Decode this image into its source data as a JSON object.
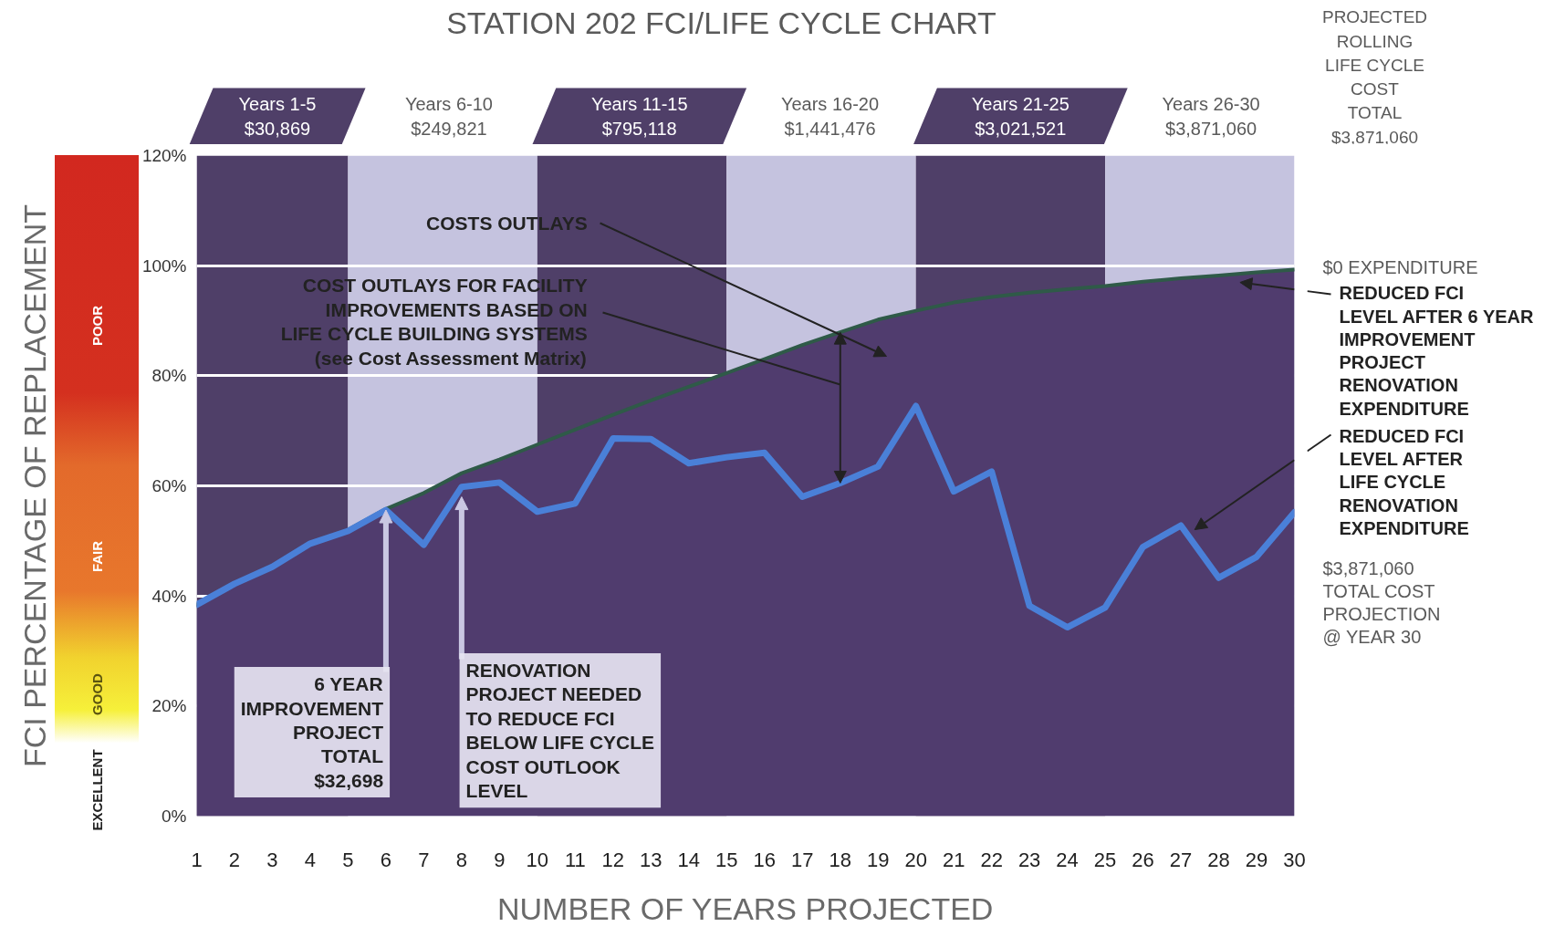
{
  "chart_data": {
    "type": "line",
    "title": "STATION 202 FCI/LIFE CYCLE CHART",
    "xlabel": "NUMBER OF YEARS PROJECTED",
    "ylabel": "FCI PERCENTAGE OF REPLACEMENT",
    "x": [
      1,
      2,
      3,
      4,
      5,
      6,
      7,
      8,
      9,
      10,
      11,
      12,
      13,
      14,
      15,
      16,
      17,
      18,
      19,
      20,
      21,
      22,
      23,
      24,
      25,
      26,
      27,
      28,
      29,
      30
    ],
    "xlim": [
      1,
      30
    ],
    "xticks": [
      1,
      2,
      3,
      4,
      5,
      6,
      7,
      8,
      9,
      10,
      11,
      12,
      13,
      14,
      15,
      16,
      17,
      18,
      19,
      20,
      21,
      22,
      23,
      24,
      25,
      26,
      27,
      28,
      29,
      30
    ],
    "ylim": [
      0,
      120
    ],
    "yticks": [
      {
        "value": 0,
        "label": "0%"
      },
      {
        "value": 20,
        "label": "20%"
      },
      {
        "value": 40,
        "label": "40%"
      },
      {
        "value": 60,
        "label": "60%"
      },
      {
        "value": 80,
        "label": "80%"
      },
      {
        "value": 100,
        "label": "100%"
      },
      {
        "value": 120,
        "label": "120%"
      }
    ],
    "grid": "y",
    "series": [
      {
        "type": "area",
        "color": "#503c6e",
        "values": [
          38.4,
          42.2,
          45.4,
          49.5,
          52.0,
          55.8,
          58.7,
          62.3,
          64.8,
          67.5,
          70.2,
          72.9,
          75.5,
          78.0,
          80.5,
          83.0,
          85.6,
          87.9,
          90.2,
          91.8,
          93.3,
          94.3,
          95.1,
          95.7,
          96.3,
          97.1,
          97.7,
          98.2,
          98.8,
          99.3
        ]
      },
      {
        "color": "#2f5a48",
        "values": [
          38.4,
          42.2,
          45.4,
          49.5,
          52.0,
          55.8,
          58.7,
          62.3,
          64.8,
          67.5,
          70.2,
          72.9,
          75.5,
          78.0,
          80.5,
          83.0,
          85.6,
          87.9,
          90.2,
          91.8,
          93.3,
          94.3,
          95.1,
          95.7,
          96.3,
          97.1,
          97.7,
          98.2,
          98.8,
          99.3
        ]
      },
      {
        "color": "#4a80d8",
        "values": [
          38.4,
          42.2,
          45.3,
          49.5,
          51.8,
          55.6,
          49.3,
          59.8,
          60.6,
          55.3,
          56.8,
          68.6,
          68.5,
          64.1,
          65.2,
          66.0,
          58.0,
          60.5,
          63.5,
          74.5,
          59.0,
          62.6,
          38.2,
          34.3,
          37.9,
          48.9,
          52.8,
          43.3,
          47.1,
          55.2
        ]
      }
    ],
    "bands": [
      {
        "axis": "x",
        "from": 1,
        "to": 5,
        "label": "Years 1-5\n$30,869",
        "color": "#4f3f68"
      },
      {
        "axis": "x",
        "from": 5,
        "to": 10,
        "label": "Years 6-10\n$249,821",
        "color": "#c5c3df"
      },
      {
        "axis": "x",
        "from": 10,
        "to": 15,
        "label": "Years 11-15\n$795,118",
        "color": "#4f3f68"
      },
      {
        "axis": "x",
        "from": 15,
        "to": 20,
        "label": "Years 16-20\n$1,441,476",
        "color": "#c5c3df"
      },
      {
        "axis": "x",
        "from": 20,
        "to": 25,
        "label": "Years 21-25\n$3,021,521",
        "color": "#4f3f68"
      },
      {
        "axis": "x",
        "from": 25,
        "to": 30,
        "label": "Years 26-30\n$3,871,060",
        "color": "#c5c3df"
      }
    ],
    "annotations": [
      "COSTS OUTLAYS",
      "COST OUTLAYS FOR FACILITY\nIMPROVEMENTS BASED ON\nLIFE CYCLE BUILDING SYSTEMS\n(see Cost Assessment Matrix)",
      {
        "text": "6 YEAR\nIMPROVEMENT\nPROJECT\nTOTAL\n$32,698",
        "x": 6,
        "y": 55.6
      },
      {
        "text": "RENOVATION\nPROJECT NEEDED\nTO REDUCE FCI\nBELOW LIFE CYCLE\nCOST OUTLOOK\nLEVEL",
        "x": 8,
        "y": 58
      },
      "$0 EXPENDITURE",
      "REDUCED FCI\nLEVEL AFTER 6 YEAR\nIMPROVEMENT\nPROJECT\nRENOVATION\nEXPENDITURE",
      "REDUCED FCI\nLEVEL AFTER\nLIFE CYCLE\nRENOVATION\nEXPENDITURE",
      "$3,871,060\nTOTAL COST\nPROJECTION\n@ YEAR 30",
      "PROJECTED\nROLLING\nLIFE CYCLE\nCOST\nTOTAL\n$3,871,060",
      "POOR",
      "FAIR",
      "GOOD",
      "EXCELLENT"
    ]
  }
}
